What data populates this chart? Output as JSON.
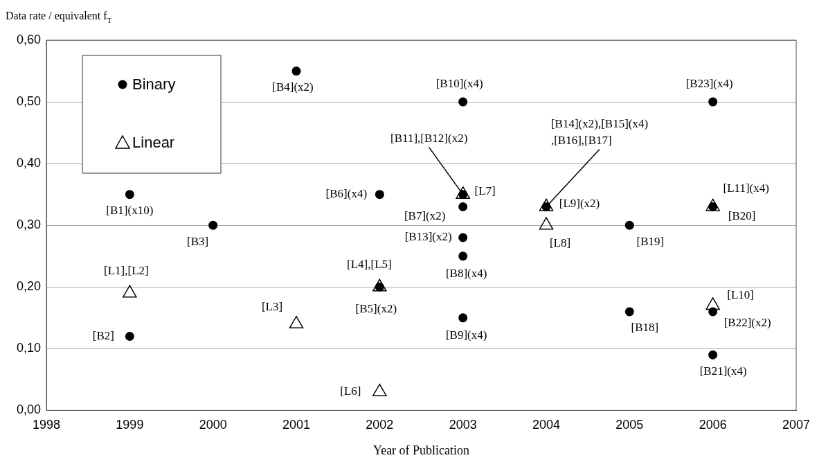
{
  "chart_data": {
    "type": "scatter",
    "ylabel": "Data rate / equivalent f$_{T}$",
    "xlabel": "Year of Publication",
    "xlim": [
      1998,
      2007
    ],
    "xticks": [
      1998,
      1999,
      2000,
      2001,
      2002,
      2003,
      2004,
      2005,
      2006,
      2007
    ],
    "ylim": [
      0,
      0.6
    ],
    "yticks": [
      {
        "value": 0,
        "label": "0,00"
      },
      {
        "value": 0.1,
        "label": "0,10"
      },
      {
        "value": 0.2,
        "label": "0,20"
      },
      {
        "value": 0.3,
        "label": "0,30"
      },
      {
        "value": 0.4,
        "label": "0,40"
      },
      {
        "value": 0.5,
        "label": "0,50"
      },
      {
        "value": 0.6,
        "label": "0,60"
      }
    ],
    "grid": "y",
    "legend": "top left",
    "series": [
      {
        "name": "Binary",
        "color": "#000000",
        "marker": "circle",
        "x": [
          1999,
          1999,
          2000,
          2001,
          2002,
          2002,
          2003,
          2003,
          2003,
          2003,
          2003,
          2003,
          2004,
          2005,
          2005,
          2006,
          2006,
          2006,
          2006
        ],
        "values": [
          0.35,
          0.12,
          0.3,
          0.55,
          0.2,
          0.35,
          0.33,
          0.25,
          0.15,
          0.5,
          0.35,
          0.28,
          0.33,
          0.16,
          0.3,
          0.33,
          0.09,
          0.16,
          0.5
        ]
      },
      {
        "name": "Linear",
        "color": "#000000",
        "marker": "triangle",
        "x": [
          1999,
          2001,
          2002,
          2002,
          2003,
          2004,
          2004,
          2006,
          2006
        ],
        "values": [
          0.19,
          0.14,
          0.2,
          0.03,
          0.35,
          0.3,
          0.33,
          0.17,
          0.33
        ]
      }
    ],
    "annotations": [
      {
        "text": "[B1](x10)",
        "x": 1999,
        "y": 0.35
      },
      {
        "text": "[B2]",
        "x": 1999,
        "y": 0.12
      },
      {
        "text": "[B3]",
        "x": 2000,
        "y": 0.3
      },
      {
        "text": "[B4](x2)",
        "x": 2001,
        "y": 0.55
      },
      {
        "text": "[B5](x2)",
        "x": 2002,
        "y": 0.2
      },
      {
        "text": "[B6](x4)",
        "x": 2002,
        "y": 0.35
      },
      {
        "text": "[B7](x2)",
        "x": 2003,
        "y": 0.33
      },
      {
        "text": "[B8](x4)",
        "x": 2003,
        "y": 0.25
      },
      {
        "text": "[B9](x4)",
        "x": 2003,
        "y": 0.15
      },
      {
        "text": "[B10](x4)",
        "x": 2003,
        "y": 0.5
      },
      {
        "text": "[B11],[B12](x2)",
        "x": 2003,
        "y": 0.35
      },
      {
        "text": "[B13](x2)",
        "x": 2003,
        "y": 0.28
      },
      {
        "text": "[B14](x2),[B15](x4)\n,[B16],[B17]",
        "x": 2004,
        "y": 0.33
      },
      {
        "text": "[B18]",
        "x": 2005,
        "y": 0.16
      },
      {
        "text": "[B19]",
        "x": 2005,
        "y": 0.3
      },
      {
        "text": "[B20]",
        "x": 2006,
        "y": 0.33
      },
      {
        "text": "[B21](x4)",
        "x": 2006,
        "y": 0.09
      },
      {
        "text": "[B22](x2)",
        "x": 2006,
        "y": 0.16
      },
      {
        "text": "[B23](x4)",
        "x": 2006,
        "y": 0.5
      },
      {
        "text": "[L1],[L2]",
        "x": 1999,
        "y": 0.19
      },
      {
        "text": "[L3]",
        "x": 2001,
        "y": 0.14
      },
      {
        "text": "[L4],[L5]",
        "x": 2002,
        "y": 0.2
      },
      {
        "text": "[L6]",
        "x": 2002,
        "y": 0.03
      },
      {
        "text": "[L7]",
        "x": 2003,
        "y": 0.35
      },
      {
        "text": "[L8]",
        "x": 2004,
        "y": 0.3
      },
      {
        "text": "[L9](x2)",
        "x": 2004,
        "y": 0.33
      },
      {
        "text": "[L10]",
        "x": 2006,
        "y": 0.17
      },
      {
        "text": "[L11](x4)",
        "x": 2006,
        "y": 0.33
      }
    ]
  }
}
